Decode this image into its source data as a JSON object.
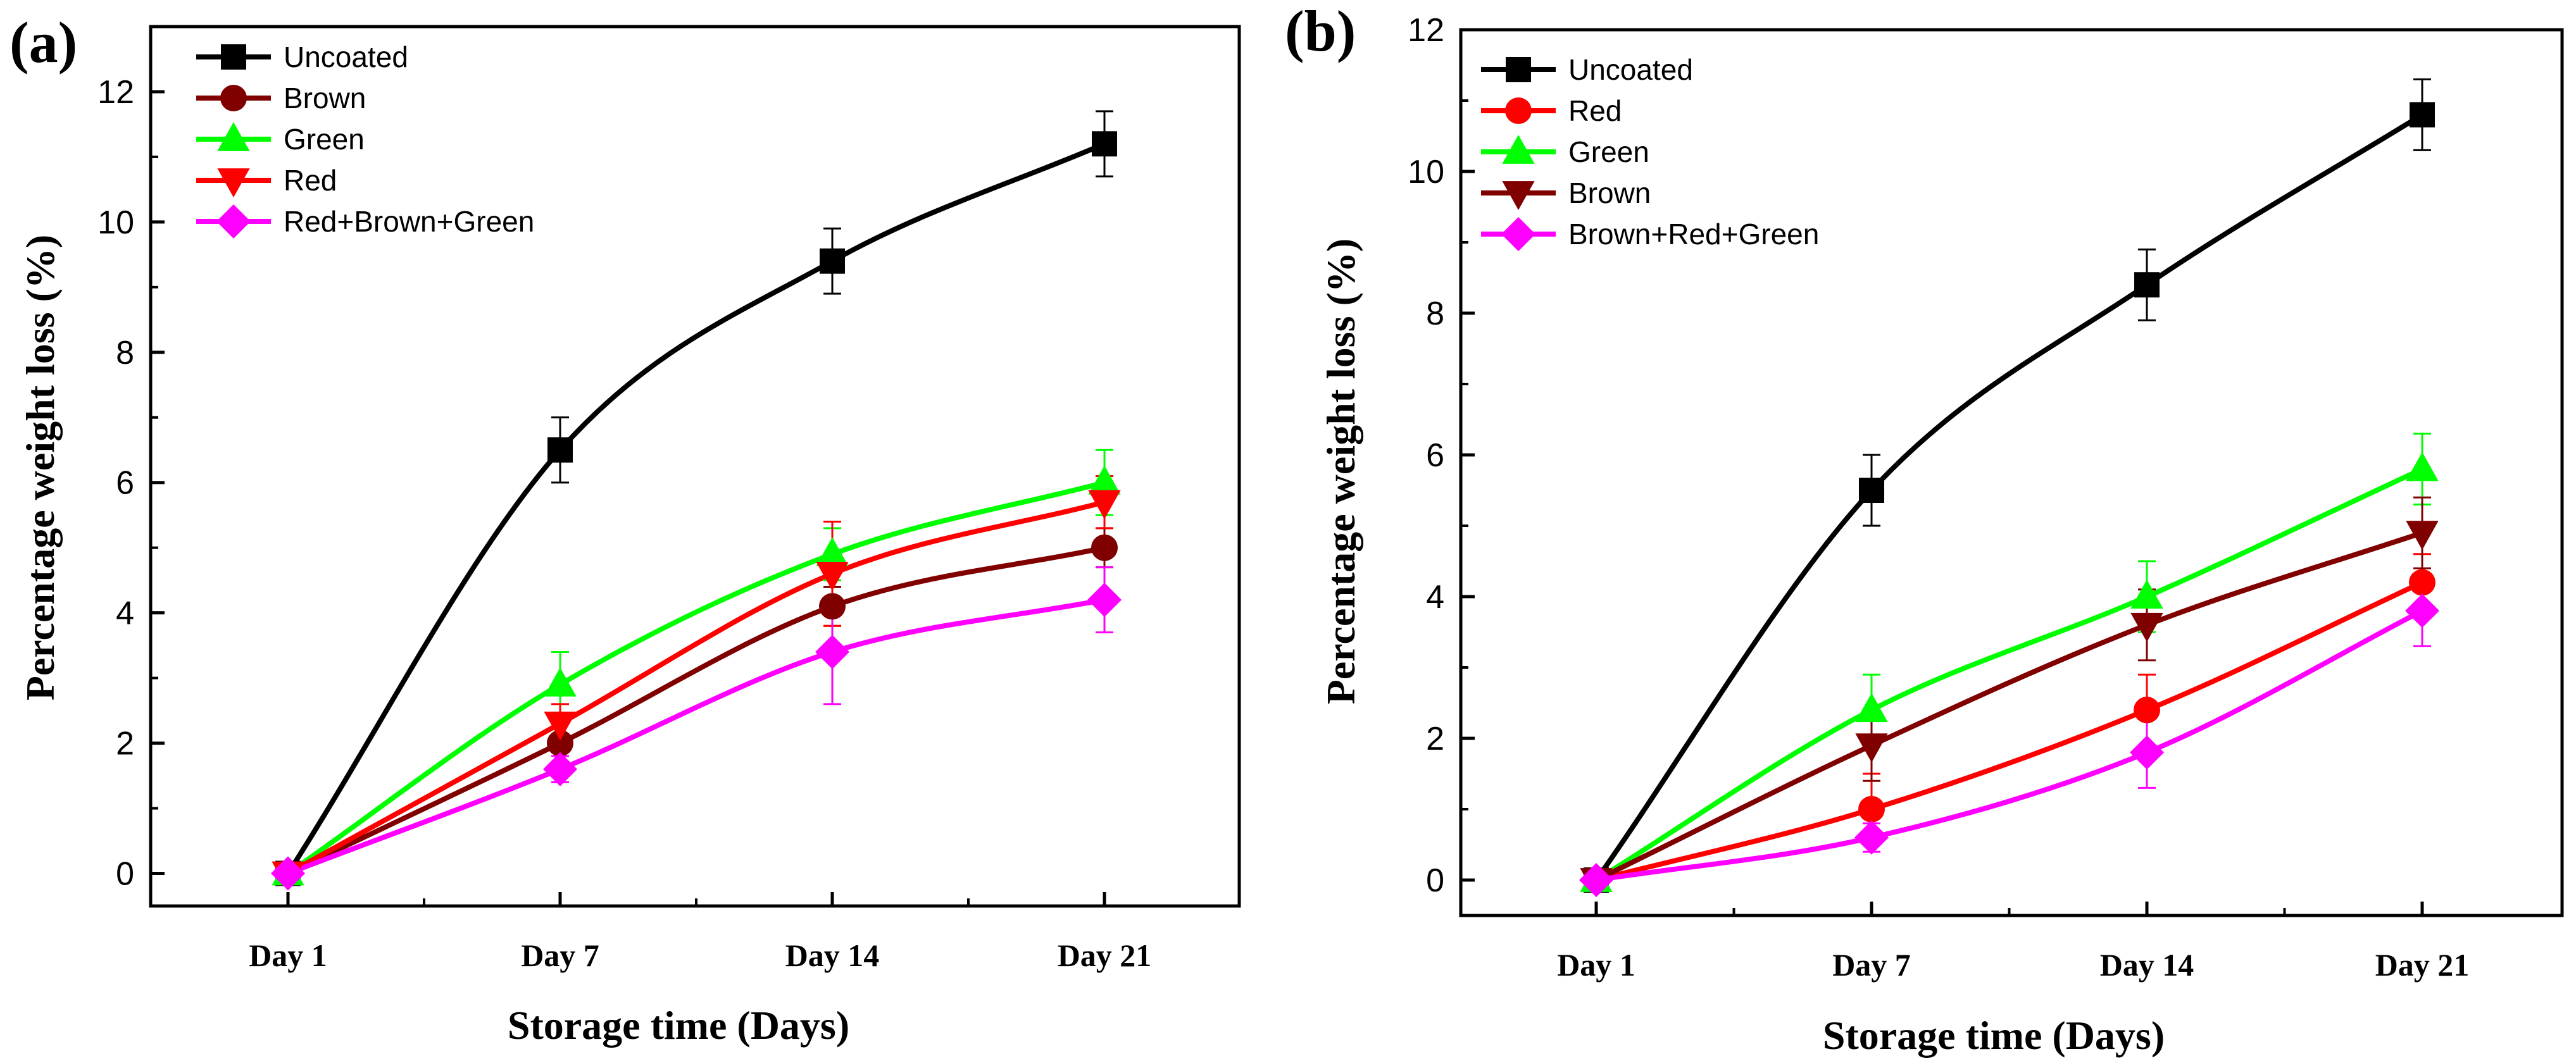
{
  "chart_data": [
    {
      "panel_label": "(a)",
      "type": "line",
      "xlabel": "Storage time (Days)",
      "ylabel": "Percentage weight loss (%)",
      "categories": [
        "Day 1",
        "Day 7",
        "Day 14",
        "Day 21"
      ],
      "ylim": [
        -0.5,
        13
      ],
      "yticks": [
        0,
        2,
        4,
        6,
        8,
        10,
        12
      ],
      "legend_position": "top-left",
      "series": [
        {
          "name": "Uncoated",
          "color": "#000000",
          "marker": "square",
          "values": [
            0,
            6.5,
            9.4,
            11.2
          ],
          "errors": [
            0,
            0.5,
            0.5,
            0.5
          ]
        },
        {
          "name": "Brown",
          "color": "#800000",
          "marker": "circle",
          "values": [
            0,
            2.0,
            4.1,
            5.0
          ],
          "errors": [
            0,
            0.3,
            0.3,
            0.3
          ]
        },
        {
          "name": "Green",
          "color": "#00ff00",
          "marker": "triangle-up",
          "values": [
            0,
            2.9,
            4.9,
            6.0
          ],
          "errors": [
            0,
            0.5,
            0.4,
            0.5
          ]
        },
        {
          "name": "Red",
          "color": "#ff0000",
          "marker": "triangle-down",
          "values": [
            0,
            2.3,
            4.6,
            5.7
          ],
          "errors": [
            0,
            0.3,
            0.8,
            0.4
          ]
        },
        {
          "name": "Red+Brown+Green",
          "color": "#ff00ff",
          "marker": "diamond",
          "values": [
            0,
            1.6,
            3.4,
            4.2
          ],
          "errors": [
            0,
            0.2,
            0.8,
            0.5
          ]
        }
      ]
    },
    {
      "panel_label": "(b)",
      "type": "line",
      "xlabel": "Storage time (Days)",
      "ylabel": "Percentage weight loss (%)",
      "categories": [
        "Day 1",
        "Day 7",
        "Day 14",
        "Day 21"
      ],
      "ylim": [
        -0.5,
        12
      ],
      "yticks": [
        0,
        2,
        4,
        6,
        8,
        10,
        12
      ],
      "legend_position": "top-left",
      "series": [
        {
          "name": "Uncoated",
          "color": "#000000",
          "marker": "square",
          "values": [
            0,
            5.5,
            8.4,
            10.8
          ],
          "errors": [
            0,
            0.5,
            0.5,
            0.5
          ]
        },
        {
          "name": "Red",
          "color": "#ff0000",
          "marker": "circle",
          "values": [
            0,
            1.0,
            2.4,
            4.2
          ],
          "errors": [
            0,
            0.5,
            0.5,
            0.4
          ]
        },
        {
          "name": "Green",
          "color": "#00ff00",
          "marker": "triangle-up",
          "values": [
            0,
            2.4,
            4.0,
            5.8
          ],
          "errors": [
            0,
            0.5,
            0.5,
            0.5
          ]
        },
        {
          "name": "Brown",
          "color": "#800000",
          "marker": "triangle-down",
          "values": [
            0,
            1.9,
            3.6,
            4.9
          ],
          "errors": [
            0,
            0.5,
            0.5,
            0.5
          ]
        },
        {
          "name": "Brown+Red+Green",
          "color": "#ff00ff",
          "marker": "diamond",
          "values": [
            0,
            0.6,
            1.8,
            3.8
          ],
          "errors": [
            0,
            0.2,
            0.5,
            0.5
          ]
        }
      ]
    }
  ]
}
